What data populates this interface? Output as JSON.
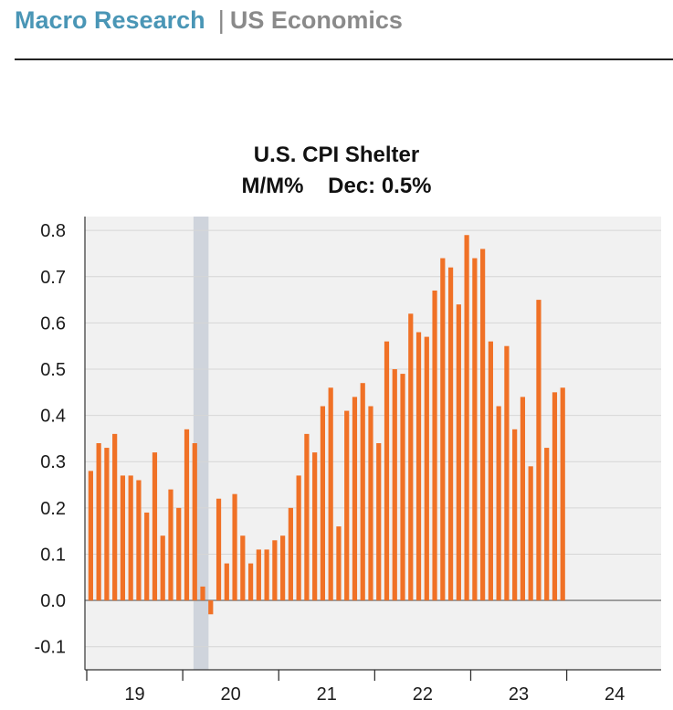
{
  "header": {
    "brand": "Macro Research",
    "separator": "|",
    "section": "US Economics"
  },
  "colors": {
    "bar": "#f07126",
    "plot_bg": "#f1f1f1",
    "recession_band": "#cfd4dc",
    "grid": "#d6d6d6",
    "brand": "#4a96b6"
  },
  "chart_data": {
    "type": "bar",
    "title": "U.S. CPI Shelter",
    "subtitle": "M/M%    Dec: 0.5%",
    "xlabel": "",
    "ylabel": "",
    "ylim": [
      -0.15,
      0.83
    ],
    "yticks": [
      0.8,
      0.7,
      0.6,
      0.5,
      0.4,
      0.3,
      0.2,
      0.1,
      0.0,
      -0.1
    ],
    "ytick_labels": [
      "0.8",
      "0.7",
      "0.6",
      "0.5",
      "0.4",
      "0.3",
      "0.2",
      "0.1",
      "0.0",
      "-0.1"
    ],
    "xtick_labels": [
      "19",
      "20",
      "21",
      "22",
      "23",
      "24"
    ],
    "grid": true,
    "start": "2019-01",
    "recession_shading": [
      "2020-02",
      "2020-04"
    ],
    "values": [
      0.28,
      0.34,
      0.33,
      0.36,
      0.27,
      0.27,
      0.26,
      0.19,
      0.32,
      0.14,
      0.24,
      0.2,
      0.37,
      0.34,
      0.03,
      -0.03,
      0.22,
      0.08,
      0.23,
      0.14,
      0.08,
      0.11,
      0.11,
      0.13,
      0.14,
      0.2,
      0.27,
      0.36,
      0.32,
      0.42,
      0.46,
      0.16,
      0.41,
      0.44,
      0.47,
      0.42,
      0.34,
      0.56,
      0.5,
      0.49,
      0.62,
      0.58,
      0.57,
      0.67,
      0.74,
      0.72,
      0.64,
      0.79,
      0.74,
      0.76,
      0.56,
      0.42,
      0.55,
      0.37,
      0.44,
      0.29,
      0.65,
      0.33,
      0.45,
      0.46
    ]
  }
}
